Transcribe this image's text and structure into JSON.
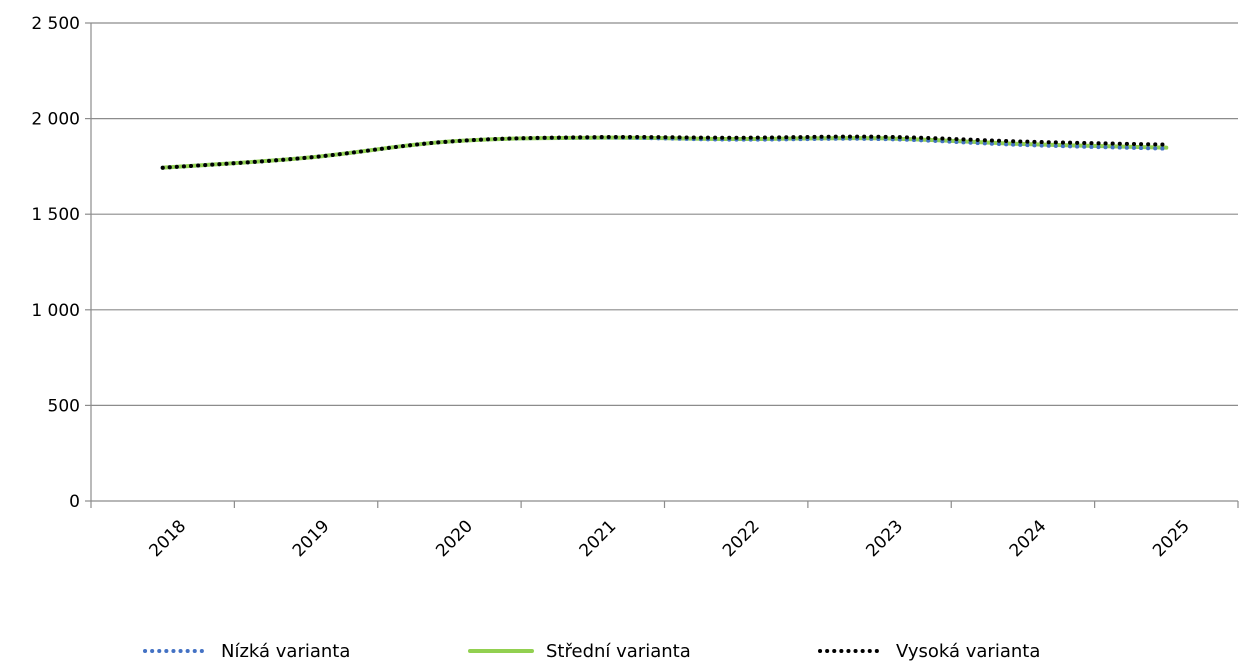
{
  "chart_data": {
    "type": "line",
    "title": "",
    "xlabel": "",
    "ylabel": "",
    "categories": [
      "2018",
      "2019",
      "2020",
      "2021",
      "2022",
      "2023",
      "2024",
      "2025"
    ],
    "ylim": [
      0,
      2500
    ],
    "yticks": [
      0,
      500,
      1000,
      1500,
      2000,
      2500
    ],
    "ytick_labels": [
      "0",
      "500",
      "1 000",
      "1 500",
      "2 000",
      "2 500"
    ],
    "grid": true,
    "legend_position": "bottom",
    "series": [
      {
        "name": "Nízká varianta",
        "color": "#4472C4",
        "style": "dotted",
        "values": [
          1743,
          1795,
          1880,
          1900,
          1890,
          1893,
          1862,
          1843
        ]
      },
      {
        "name": "Střední varianta",
        "color": "#92D050",
        "style": "solid",
        "values": [
          1743,
          1795,
          1880,
          1900,
          1893,
          1897,
          1867,
          1848
        ]
      },
      {
        "name": "Vysoká varianta",
        "color": "#000000",
        "style": "dotted",
        "values": [
          1743,
          1795,
          1880,
          1903,
          1900,
          1905,
          1880,
          1864
        ]
      }
    ]
  }
}
